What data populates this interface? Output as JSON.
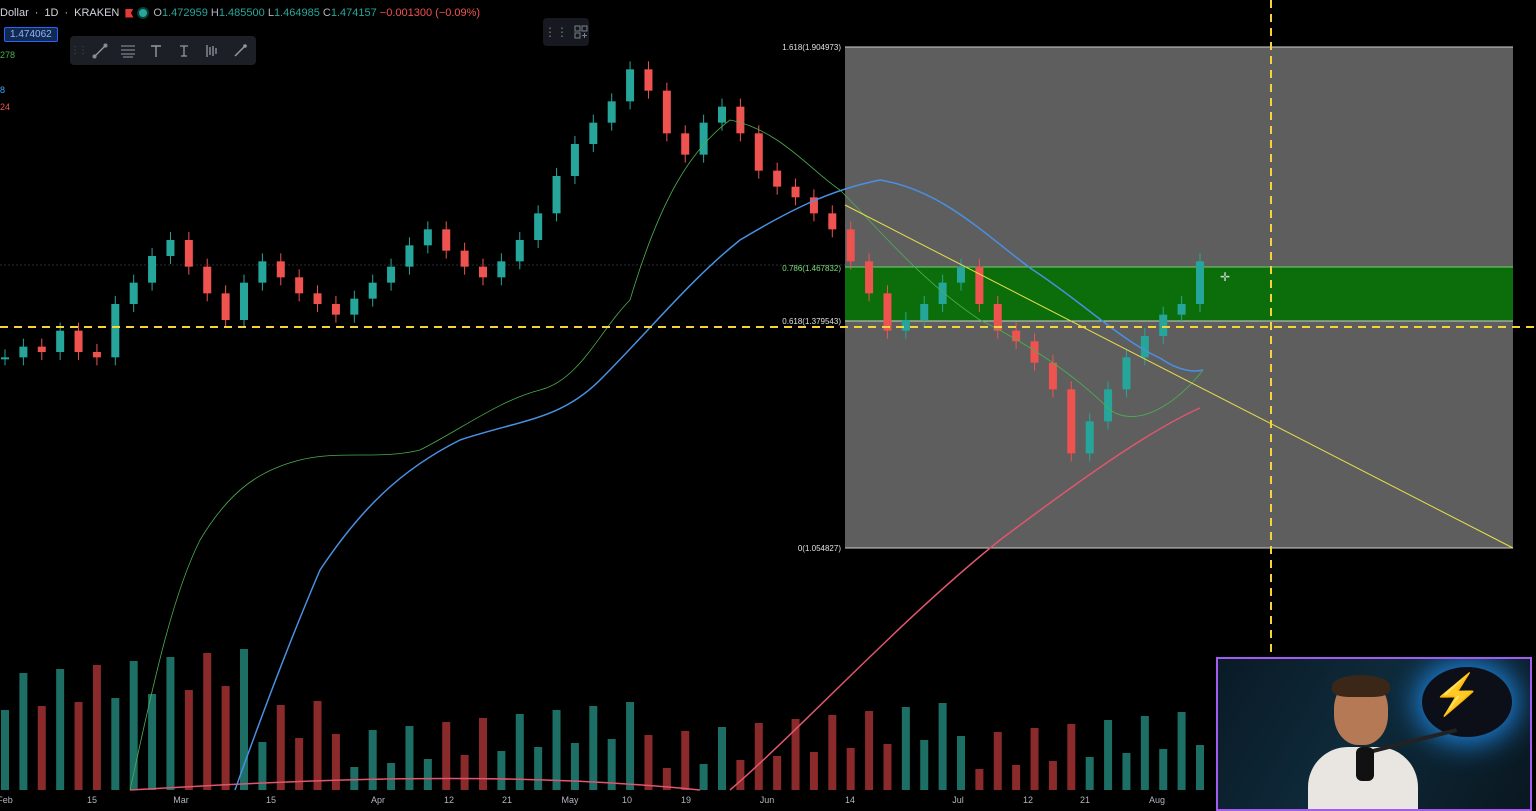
{
  "legend": {
    "symbol": "Dollar",
    "interval": "1D",
    "exchange": "KRAKEN",
    "open_label": "O",
    "open": "1.472959",
    "high_label": "H",
    "high": "1.485500",
    "low_label": "L",
    "low": "1.464985",
    "close_label": "C",
    "close": "1.474157",
    "change": "−0.001300 (−0.09%)"
  },
  "price_badge": "1.474062",
  "indicators": [
    {
      "text": "278",
      "color": "#4caf50"
    },
    {
      "text": "8",
      "color": "#42a5f5"
    },
    {
      "text": "24",
      "color": "#ef5350"
    }
  ],
  "toolbar": {
    "tools": [
      "trend-line-icon",
      "fib-retracement-icon",
      "text-icon",
      "price-label-icon",
      "bar-pattern-icon",
      "brush-icon"
    ]
  },
  "fib": {
    "levels": [
      {
        "label": "1.618(1.904973)",
        "value": 1.904973
      },
      {
        "label": "0.786(1.467832)",
        "value": 1.467832
      },
      {
        "label": "0.618(1.379543)",
        "value": 1.379543
      },
      {
        "label": "0(1.054827)",
        "value": 1.054827
      }
    ]
  },
  "x_axis": {
    "labels": [
      "Feb",
      "15",
      "Mar",
      "15",
      "Apr",
      "12",
      "21",
      "May",
      "10",
      "19",
      "Jun",
      "14",
      "Jul",
      "12",
      "21",
      "Aug"
    ]
  },
  "colors": {
    "up": "#26a69a",
    "down": "#ef5350",
    "fib_box": "#5e5e5e",
    "fib_zone": "#0b6e0b",
    "ma_fast": "#4caf50",
    "ma_mid": "#4a90e2",
    "ma_slow": "#e0566e",
    "trendline": "#e8e04a",
    "crosshair": "#f5d33a"
  },
  "chart_data": {
    "type": "candlestick",
    "title": "",
    "series": [
      {
        "name": "price",
        "values": [
          1.28,
          1.3,
          1.29,
          1.33,
          1.29,
          1.28,
          1.38,
          1.42,
          1.47,
          1.5,
          1.45,
          1.4,
          1.35,
          1.42,
          1.46,
          1.43,
          1.4,
          1.38,
          1.36,
          1.39,
          1.42,
          1.45,
          1.49,
          1.52,
          1.48,
          1.45,
          1.43,
          1.46,
          1.5,
          1.55,
          1.62,
          1.68,
          1.72,
          1.76,
          1.82,
          1.78,
          1.7,
          1.66,
          1.72,
          1.75,
          1.7,
          1.63,
          1.6,
          1.58,
          1.55,
          1.52,
          1.46,
          1.4,
          1.33,
          1.35,
          1.38,
          1.42,
          1.45,
          1.38,
          1.33,
          1.31,
          1.27,
          1.22,
          1.1,
          1.16,
          1.22,
          1.28,
          1.32,
          1.36,
          1.38,
          1.46
        ]
      }
    ],
    "ylim": [
      0.9,
      1.95
    ]
  }
}
